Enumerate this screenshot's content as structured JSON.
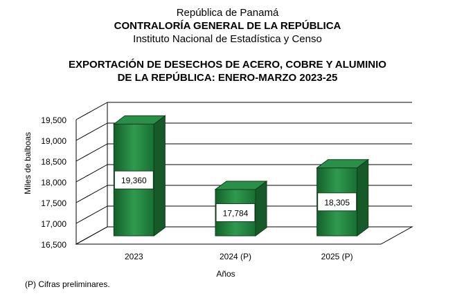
{
  "header": {
    "line1": "República de Panamá",
    "line2": "CONTRALORÍA GENERAL DE LA REPÚBLICA",
    "line3": "Instituto  Nacional de Estadística y Censo"
  },
  "chart_data": {
    "type": "bar",
    "title_line1": "EXPORTACIÓN DE DESECHOS DE ACERO, COBRE Y ALUMINIO",
    "title_line2": "DE LA REPÚBLICA: ENERO-MARZO 2023-25",
    "categories": [
      "2023",
      "2024 (P)",
      "2025 (P)"
    ],
    "values": [
      19360,
      17784,
      18305
    ],
    "value_labels": [
      "19,360",
      "17,784",
      "18,305"
    ],
    "ylabel": "Miles de balboas",
    "xlabel": "Años",
    "ylim": [
      16500,
      19500
    ],
    "yticks": [
      16500,
      17000,
      17500,
      18000,
      18500,
      19000,
      19500
    ],
    "ytick_labels": [
      "16,500",
      "17,000",
      "17,500",
      "18,000",
      "18,500",
      "19,000",
      "19,500"
    ],
    "bar_color": "#1e7a3a",
    "grid": true
  },
  "footnote": "(P) Cifras  preliminares."
}
